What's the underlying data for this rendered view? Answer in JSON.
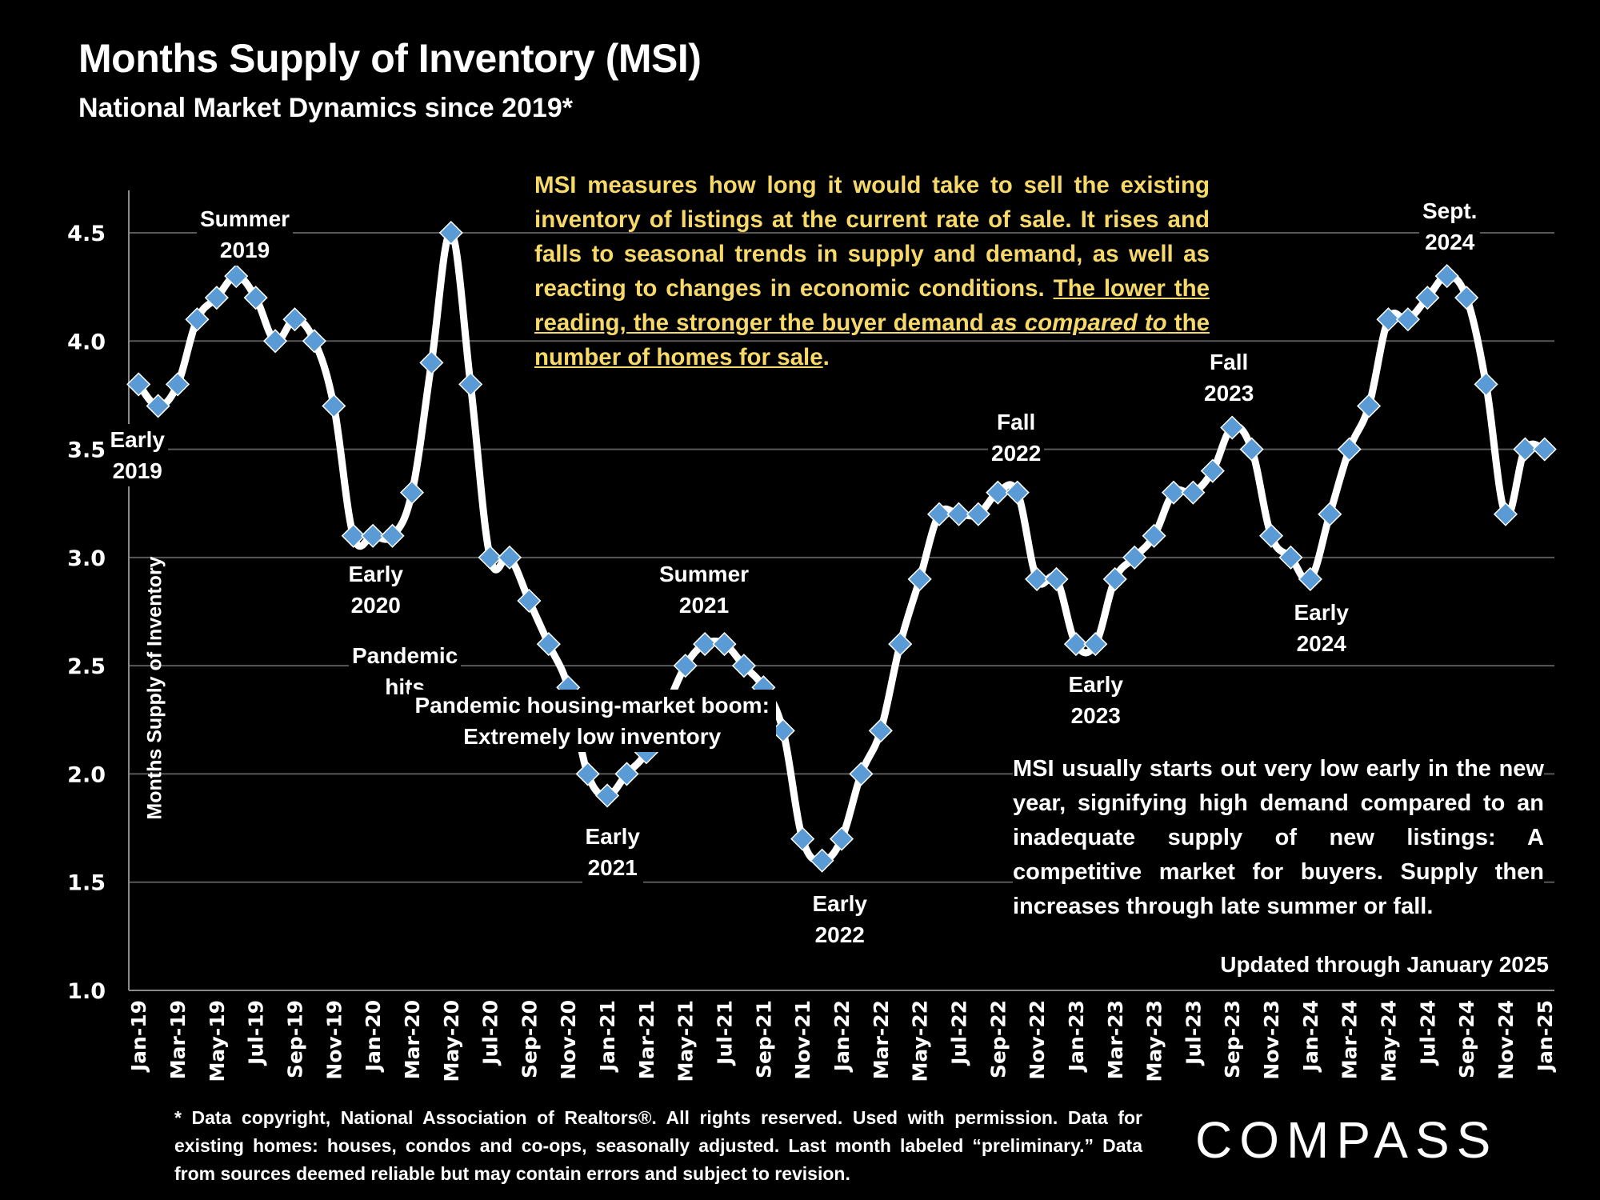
{
  "header": {
    "title": "Months Supply of Inventory (MSI)",
    "subtitle": "National Market Dynamics since 2019*"
  },
  "notes": {
    "definition_plain": "MSI measures how long it would take to sell the existing inventory of listings at the current rate of sale. It rises and falls to seasonal trends in supply and demand, as well as reacting to changes in economic conditions. ",
    "definition_underlined_1": "The lower the reading, the stronger the buyer demand ",
    "definition_underlined_italic": "as compared to",
    "definition_underlined_2": " the number of homes for sale",
    "definition_end": ".",
    "seasonal": "MSI usually starts out very low early in the new year, signifying high demand compared to an inadequate supply of new listings: A competitive market for buyers. Supply then increases through late summer or fall.",
    "updated": "Updated through January 2025"
  },
  "annotations": {
    "early_2019": [
      "Early",
      "2019"
    ],
    "summer_2019": [
      "Summer",
      "2019"
    ],
    "early_2020": [
      "Early",
      "2020"
    ],
    "pandemic_hits": [
      "Pandemic",
      "hits"
    ],
    "summer_2021": [
      "Summer",
      "2021"
    ],
    "early_2021": [
      "Early",
      "2021"
    ],
    "boom": [
      "Pandemic housing-market boom:",
      "Extremely low inventory"
    ],
    "early_2022": [
      "Early",
      "2022"
    ],
    "fall_2022": [
      "Fall",
      "2022"
    ],
    "early_2023": [
      "Early",
      "2023"
    ],
    "fall_2023": [
      "Fall",
      "2023"
    ],
    "early_2024": [
      "Early",
      "2024"
    ],
    "sept_2024": [
      "Sept.",
      "2024"
    ]
  },
  "footer": {
    "disclaimer": "* Data copyright, National Association of Realtors®. All rights reserved. Used with permission. Data for existing homes: houses, condos and co-ops, seasonally adjusted. Last month labeled “preliminary.” Data from sources deemed reliable but may contain errors and subject to revision.",
    "logo": "COMPASS"
  },
  "colors": {
    "background": "#000000",
    "line": "#ffffff",
    "marker": "#5b9bd5",
    "highlight_text": "#f7d96a",
    "gridline": "#595959"
  },
  "chart_data": {
    "type": "line",
    "title": "Months Supply of Inventory (MSI)",
    "ylabel": "Months Supply of Inventory",
    "xlabel": "",
    "ylim": [
      1.0,
      4.7
    ],
    "yticks": [
      "1.0",
      "1.5",
      "2.0",
      "2.5",
      "3.0",
      "3.5",
      "4.0",
      "4.5"
    ],
    "grid": true,
    "x": [
      "Jan-19",
      "Feb-19",
      "Mar-19",
      "Apr-19",
      "May-19",
      "Jun-19",
      "Jul-19",
      "Aug-19",
      "Sep-19",
      "Oct-19",
      "Nov-19",
      "Dec-19",
      "Jan-20",
      "Feb-20",
      "Mar-20",
      "Apr-20",
      "May-20",
      "Jun-20",
      "Jul-20",
      "Aug-20",
      "Sep-20",
      "Oct-20",
      "Nov-20",
      "Dec-20",
      "Jan-21",
      "Feb-21",
      "Mar-21",
      "Apr-21",
      "May-21",
      "Jun-21",
      "Jul-21",
      "Aug-21",
      "Sep-21",
      "Oct-21",
      "Nov-21",
      "Dec-21",
      "Jan-22",
      "Feb-22",
      "Mar-22",
      "Apr-22",
      "May-22",
      "Jun-22",
      "Jul-22",
      "Aug-22",
      "Sep-22",
      "Oct-22",
      "Nov-22",
      "Dec-22",
      "Jan-23",
      "Feb-23",
      "Mar-23",
      "Apr-23",
      "May-23",
      "Jun-23",
      "Jul-23",
      "Aug-23",
      "Sep-23",
      "Oct-23",
      "Nov-23",
      "Dec-23",
      "Jan-24",
      "Feb-24",
      "Mar-24",
      "Apr-24",
      "May-24",
      "Jun-24",
      "Jul-24",
      "Aug-24",
      "Sep-24",
      "Oct-24",
      "Nov-24",
      "Dec-24",
      "Jan-25"
    ],
    "xtick_labels": [
      "Jan-19",
      "Mar-19",
      "May-19",
      "Jul-19",
      "Sep-19",
      "Nov-19",
      "Jan-20",
      "Mar-20",
      "May-20",
      "Jul-20",
      "Sep-20",
      "Nov-20",
      "Jan-21",
      "Mar-21",
      "May-21",
      "Jul-21",
      "Sep-21",
      "Nov-21",
      "Jan-22",
      "Mar-22",
      "May-22",
      "Jul-22",
      "Sep-22",
      "Nov-22",
      "Jan-23",
      "Mar-23",
      "May-23",
      "Jul-23",
      "Sep-23",
      "Nov-23",
      "Jan-24",
      "Mar-24",
      "May-24",
      "Jul-24",
      "Sep-24",
      "Nov-24",
      "Jan-25"
    ],
    "series": [
      {
        "name": "Months Supply of Inventory",
        "values": [
          3.8,
          3.7,
          3.8,
          4.1,
          4.2,
          4.3,
          4.2,
          4.0,
          4.1,
          4.0,
          3.7,
          3.1,
          3.1,
          3.1,
          3.3,
          3.9,
          4.5,
          3.8,
          3.0,
          3.0,
          2.8,
          2.6,
          2.4,
          2.0,
          1.9,
          2.0,
          2.1,
          2.3,
          2.5,
          2.6,
          2.6,
          2.5,
          2.4,
          2.2,
          1.7,
          1.6,
          1.7,
          2.0,
          2.2,
          2.6,
          2.9,
          3.2,
          3.2,
          3.2,
          3.3,
          3.3,
          2.9,
          2.9,
          2.6,
          2.6,
          2.9,
          3.0,
          3.1,
          3.3,
          3.3,
          3.4,
          3.6,
          3.5,
          3.1,
          3.0,
          2.9,
          3.2,
          3.5,
          3.7,
          4.1,
          4.1,
          4.2,
          4.3,
          4.2,
          3.8,
          3.2,
          3.5,
          3.5
        ]
      }
    ]
  }
}
